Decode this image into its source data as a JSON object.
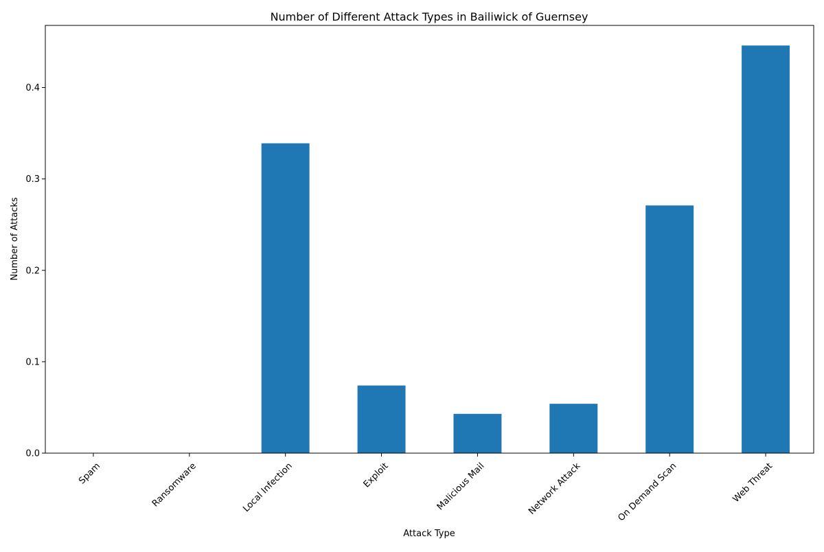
{
  "chart_data": {
    "type": "bar",
    "title": "Number of Different Attack Types in Bailiwick of Guernsey",
    "xlabel": "Attack Type",
    "ylabel": "Number of Attacks",
    "categories": [
      "Spam",
      "Ransomware",
      "Local Infection",
      "Exploit",
      "Malicious Mail",
      "Network Attack",
      "On Demand Scan",
      "Web Threat"
    ],
    "values": [
      0.0,
      0.0,
      0.339,
      0.074,
      0.043,
      0.054,
      0.271,
      0.446
    ],
    "ylim": [
      0,
      0.468
    ],
    "yticks": [
      0.0,
      0.1,
      0.2,
      0.3,
      0.4
    ],
    "ytick_labels": [
      "0.0",
      "0.1",
      "0.2",
      "0.3",
      "0.4"
    ],
    "xtick_rotation_deg": 45,
    "grid": false,
    "legend": "none",
    "bar_color": "#1f77b4"
  }
}
